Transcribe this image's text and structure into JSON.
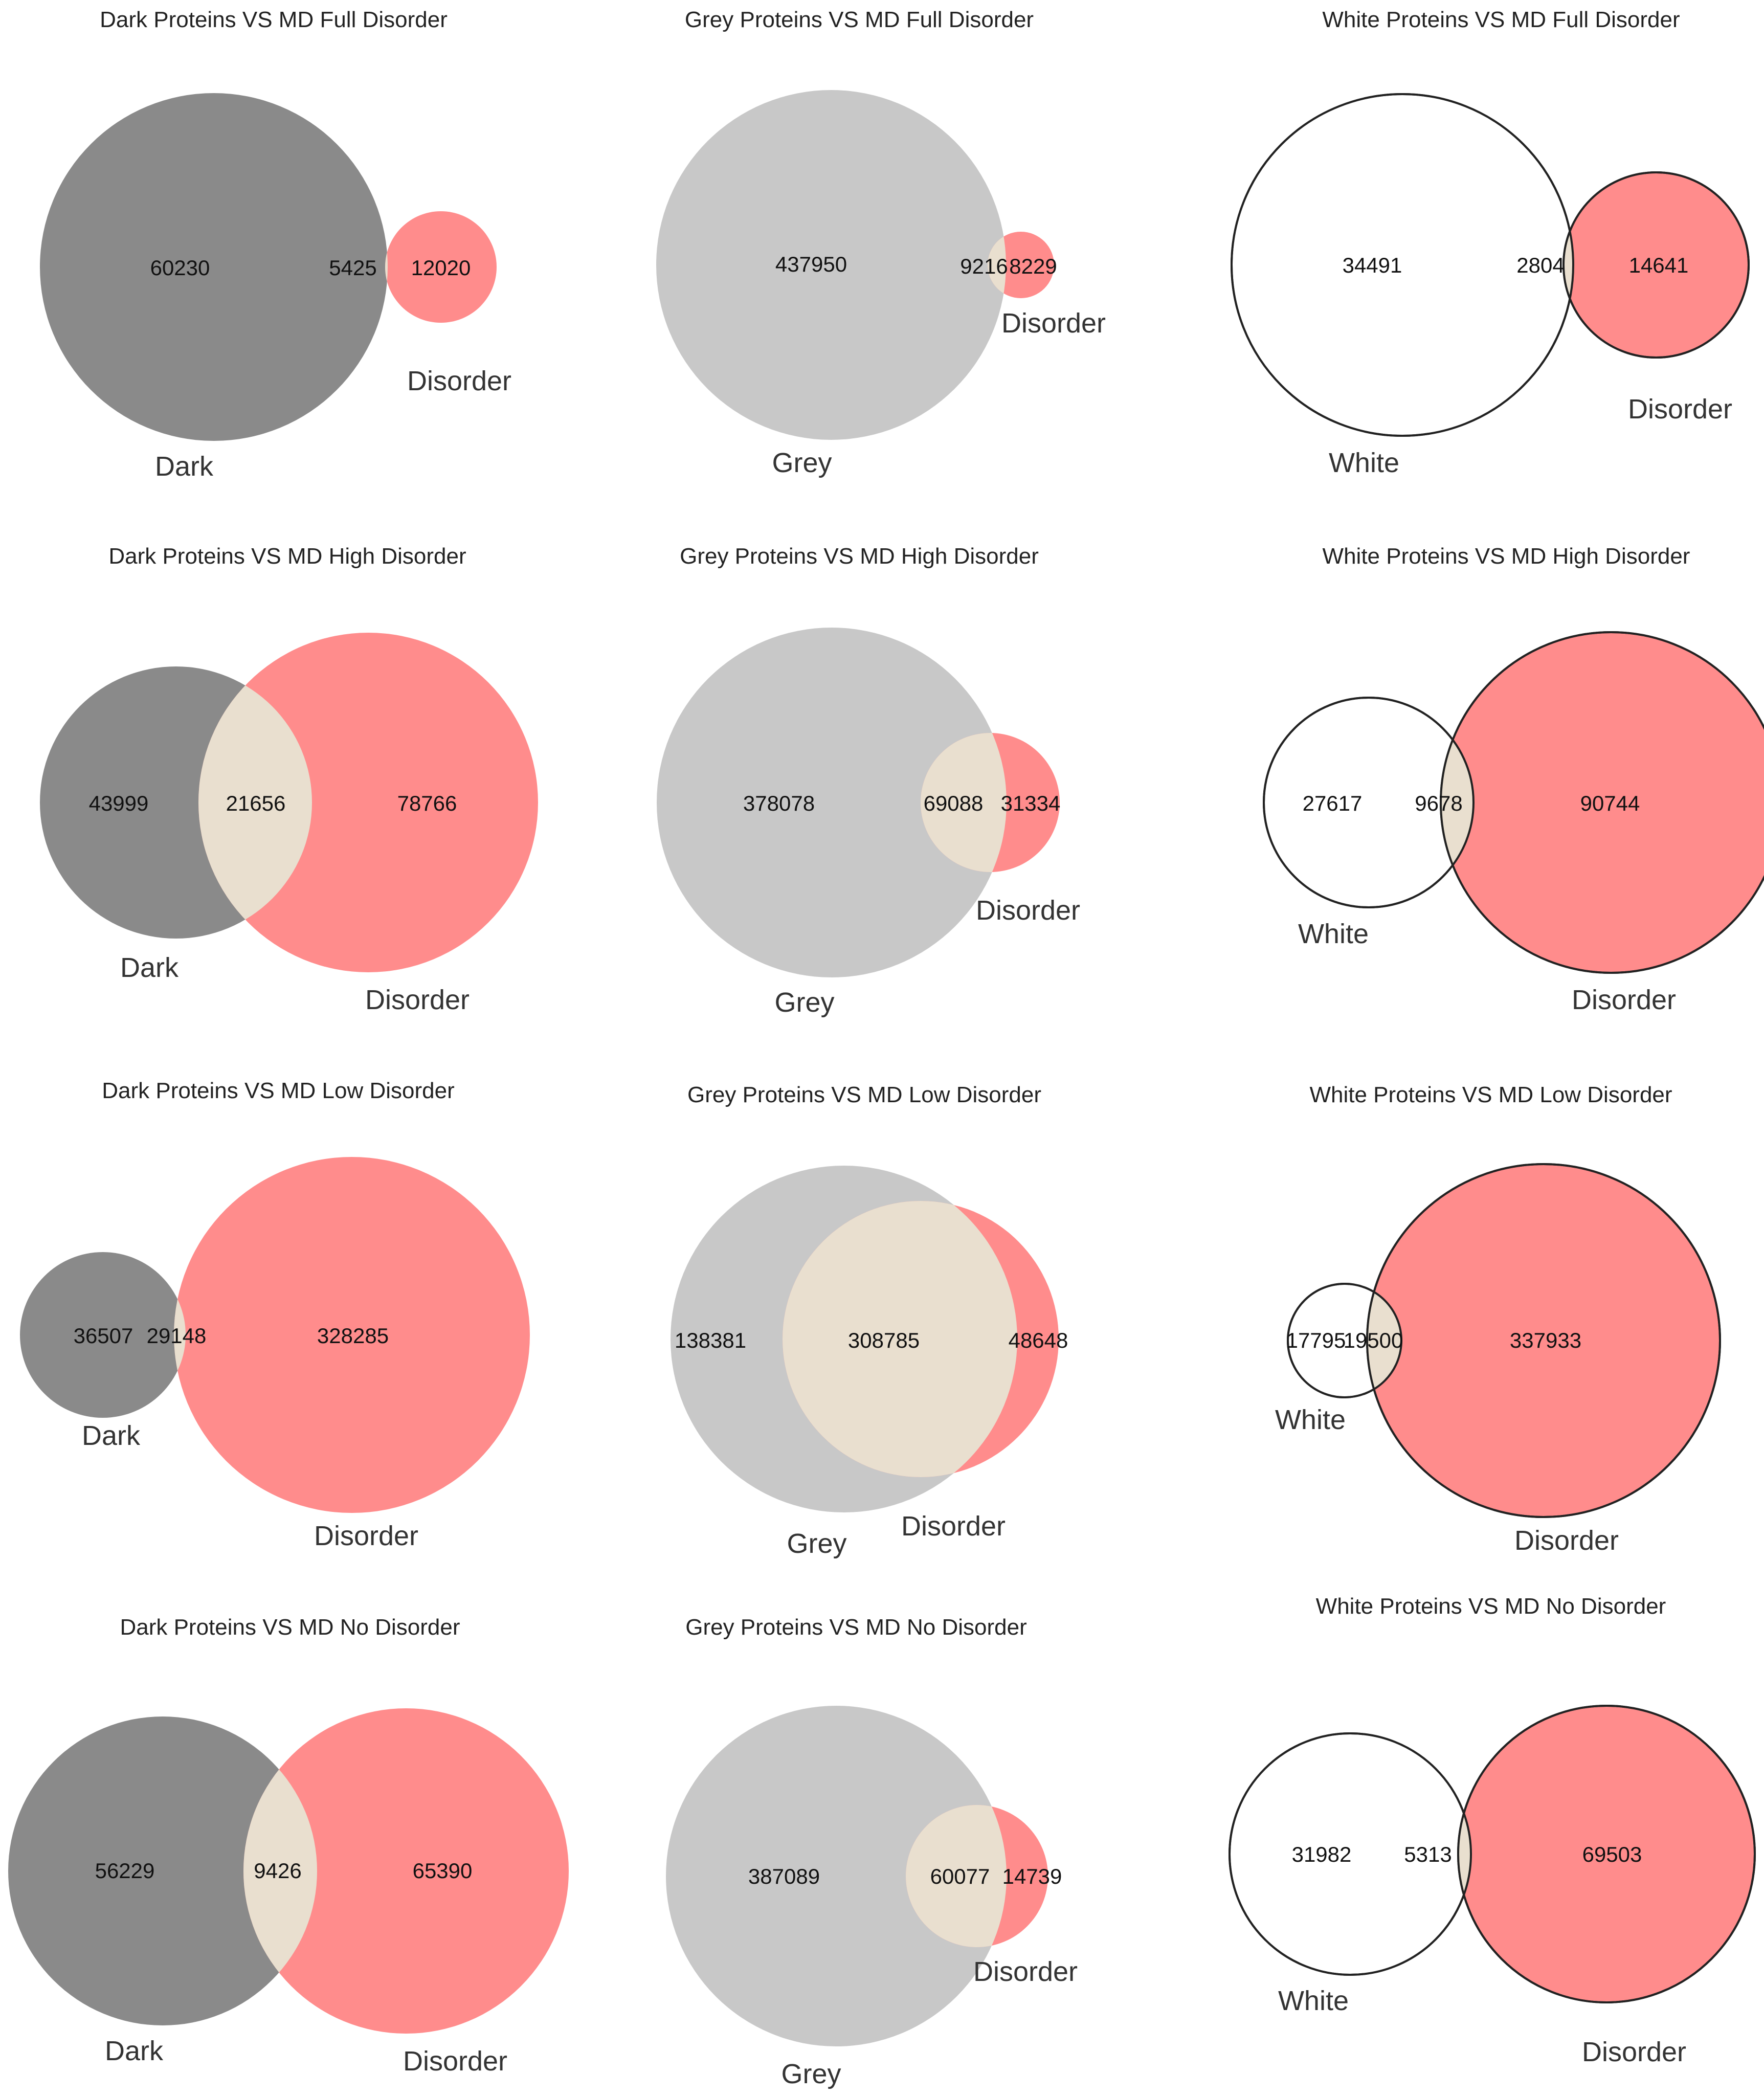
{
  "colors": {
    "dark": "#8a8a8a",
    "grey": "#c8c8c8",
    "white": "#ffffff",
    "disorder": "#ff8c8c",
    "overlap": "#e9dfcf",
    "outline": "#222222"
  },
  "chart_data": [
    {
      "type": "venn",
      "title": "Dark Proteins VS MD Full Disorder",
      "set_a": "Dark",
      "set_b": "Disorder",
      "only_a": 60230,
      "overlap": 5425,
      "only_b": 12020
    },
    {
      "type": "venn",
      "title": "Grey Proteins VS MD Full Disorder",
      "set_a": "Grey",
      "set_b": "Disorder",
      "only_a": 437950,
      "overlap": 9216,
      "only_b": 8229
    },
    {
      "type": "venn",
      "title": "White Proteins VS MD Full Disorder",
      "set_a": "White",
      "set_b": "Disorder",
      "only_a": 34491,
      "overlap": 2804,
      "only_b": 14641
    },
    {
      "type": "venn",
      "title": "Dark Proteins VS MD High Disorder",
      "set_a": "Dark",
      "set_b": "Disorder",
      "only_a": 43999,
      "overlap": 21656,
      "only_b": 78766
    },
    {
      "type": "venn",
      "title": "Grey Proteins VS MD High Disorder",
      "set_a": "Grey",
      "set_b": "Disorder",
      "only_a": 378078,
      "overlap": 69088,
      "only_b": 31334
    },
    {
      "type": "venn",
      "title": "White Proteins VS MD High Disorder",
      "set_a": "White",
      "set_b": "Disorder",
      "only_a": 27617,
      "overlap": 9678,
      "only_b": 90744
    },
    {
      "type": "venn",
      "title": "Dark Proteins VS MD Low Disorder",
      "set_a": "Dark",
      "set_b": "Disorder",
      "only_a": 36507,
      "overlap": 29148,
      "only_b": 328285
    },
    {
      "type": "venn",
      "title": "Grey Proteins VS MD Low Disorder",
      "set_a": "Grey",
      "set_b": "Disorder",
      "only_a": 138381,
      "overlap": 308785,
      "only_b": 48648
    },
    {
      "type": "venn",
      "title": "White Proteins VS MD Low Disorder",
      "set_a": "White",
      "set_b": "Disorder",
      "only_a": 17795,
      "overlap": 19500,
      "only_b": 337933
    },
    {
      "type": "venn",
      "title": "Dark Proteins VS MD No Disorder",
      "set_a": "Dark",
      "set_b": "Disorder",
      "only_a": 56229,
      "overlap": 9426,
      "only_b": 65390
    },
    {
      "type": "venn",
      "title": "Grey Proteins VS MD No Disorder",
      "set_a": "Grey",
      "set_b": "Disorder",
      "only_a": 387089,
      "overlap": 60077,
      "only_b": 14739
    },
    {
      "type": "venn",
      "title": "White Proteins VS MD No Disorder",
      "set_a": "White",
      "set_b": "Disorder",
      "only_a": 31982,
      "overlap": 5313,
      "only_b": 69503
    }
  ]
}
